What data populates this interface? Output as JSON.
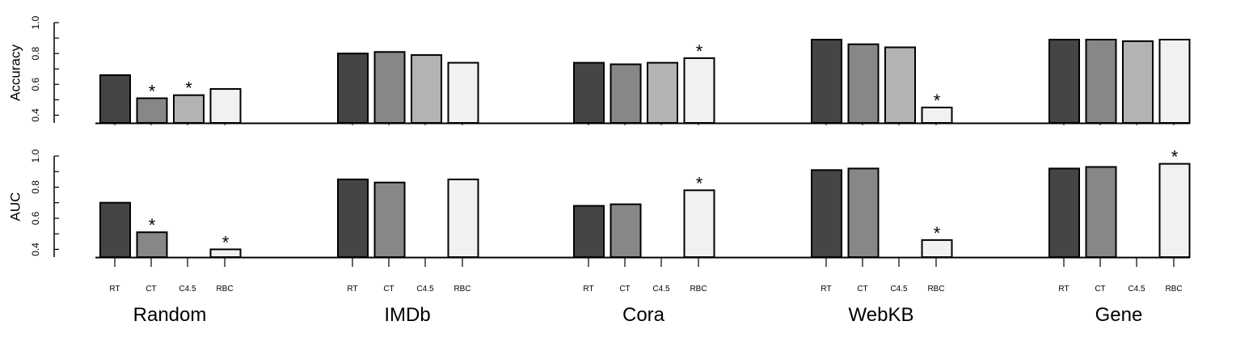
{
  "chart_data": [
    {
      "type": "bar",
      "ylabel": "Accuracy",
      "ylim": [
        0.35,
        1.0
      ],
      "yticks": [
        "0.4",
        "0.6",
        "0.8",
        "1.0"
      ],
      "groups": [
        "Random",
        "IMDb",
        "Cora",
        "WebKB",
        "Gene"
      ],
      "methods": [
        "RT",
        "CT",
        "C4.5",
        "RBC"
      ],
      "values": [
        [
          0.66,
          0.51,
          0.53,
          0.57
        ],
        [
          0.8,
          0.81,
          0.79,
          0.74
        ],
        [
          0.74,
          0.73,
          0.74,
          0.77
        ],
        [
          0.89,
          0.86,
          0.84,
          0.45
        ],
        [
          0.89,
          0.89,
          0.88,
          0.89
        ]
      ],
      "significant": [
        [
          false,
          true,
          true,
          false
        ],
        [
          false,
          false,
          false,
          false
        ],
        [
          false,
          false,
          false,
          true
        ],
        [
          false,
          false,
          false,
          true
        ],
        [
          false,
          false,
          false,
          false
        ]
      ]
    },
    {
      "type": "bar",
      "ylabel": "AUC",
      "ylim": [
        0.35,
        1.0
      ],
      "yticks": [
        "0.4",
        "0.6",
        "0.8",
        "1.0"
      ],
      "groups": [
        "Random",
        "IMDb",
        "Cora",
        "WebKB",
        "Gene"
      ],
      "methods": [
        "RT",
        "CT",
        "C4.5",
        "RBC"
      ],
      "values": [
        [
          0.7,
          0.51,
          null,
          0.4
        ],
        [
          0.85,
          0.83,
          null,
          0.85
        ],
        [
          0.68,
          0.69,
          null,
          0.78
        ],
        [
          0.91,
          0.92,
          null,
          0.46
        ],
        [
          0.92,
          0.93,
          null,
          0.95
        ]
      ],
      "significant": [
        [
          false,
          true,
          false,
          true
        ],
        [
          false,
          false,
          false,
          false
        ],
        [
          false,
          false,
          false,
          true
        ],
        [
          false,
          false,
          false,
          true
        ],
        [
          false,
          false,
          false,
          true
        ]
      ]
    }
  ],
  "colors": {
    "RT": "#454545",
    "CT": "#878787",
    "C4.5": "#b3b3b3",
    "RBC": "#f1f1f1",
    "stroke": "#000000"
  },
  "marker": "*"
}
